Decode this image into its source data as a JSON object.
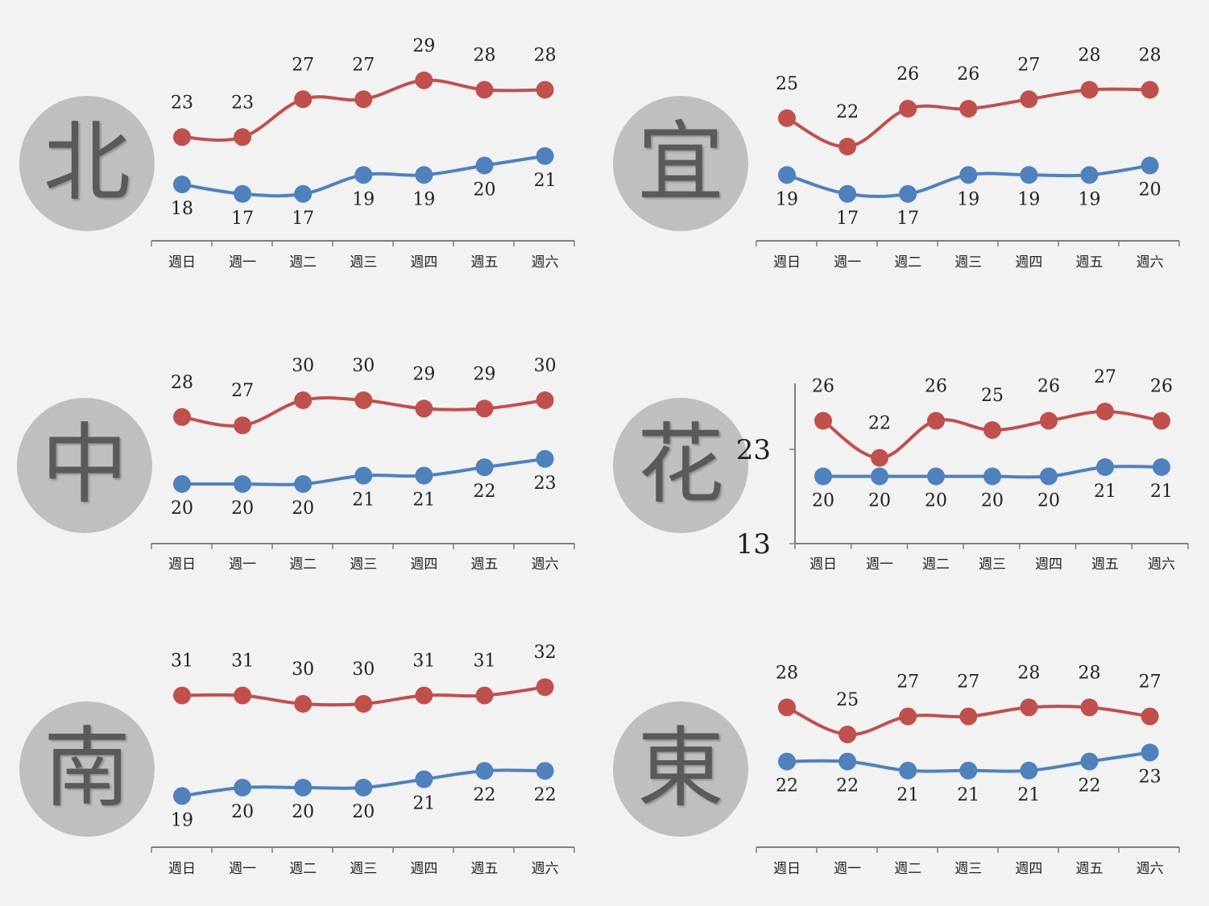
{
  "colors": {
    "high": "#c0504d",
    "low": "#4f81bd",
    "badge": "#bfbfbf",
    "axis": "#7f7f7f"
  },
  "chart_data": [
    {
      "type": "line",
      "region": "北",
      "categories": [
        "週日",
        "週一",
        "週二",
        "週三",
        "週四",
        "週五",
        "週六"
      ],
      "series": [
        {
          "values": [
            23,
            23,
            27,
            27,
            29,
            28,
            28
          ],
          "color": "#c0504d"
        },
        {
          "values": [
            18,
            17,
            17,
            19,
            19,
            20,
            21
          ],
          "color": "#4f81bd"
        }
      ]
    },
    {
      "type": "line",
      "region": "宜",
      "categories": [
        "週日",
        "週一",
        "週二",
        "週三",
        "週四",
        "週五",
        "週六"
      ],
      "series": [
        {
          "values": [
            25,
            22,
            26,
            26,
            27,
            28,
            28
          ],
          "color": "#c0504d"
        },
        {
          "values": [
            19,
            17,
            17,
            19,
            19,
            19,
            20
          ],
          "color": "#4f81bd"
        }
      ]
    },
    {
      "type": "line",
      "region": "中",
      "categories": [
        "週日",
        "週一",
        "週二",
        "週三",
        "週四",
        "週五",
        "週六"
      ],
      "series": [
        {
          "values": [
            28,
            27,
            30,
            30,
            29,
            29,
            30
          ],
          "color": "#c0504d"
        },
        {
          "values": [
            20,
            20,
            20,
            21,
            21,
            22,
            23
          ],
          "color": "#4f81bd"
        }
      ]
    },
    {
      "type": "line",
      "region": "花",
      "categories": [
        "週日",
        "週一",
        "週二",
        "週三",
        "週四",
        "週五",
        "週六"
      ],
      "yticks": [
        "23",
        "13"
      ],
      "series": [
        {
          "values": [
            26,
            22,
            26,
            25,
            26,
            27,
            26
          ],
          "color": "#c0504d"
        },
        {
          "values": [
            20,
            20,
            20,
            20,
            20,
            21,
            21
          ],
          "color": "#4f81bd"
        }
      ]
    },
    {
      "type": "line",
      "region": "南",
      "categories": [
        "週日",
        "週一",
        "週二",
        "週三",
        "週四",
        "週五",
        "週六"
      ],
      "series": [
        {
          "values": [
            31,
            31,
            30,
            30,
            31,
            31,
            32
          ],
          "color": "#c0504d"
        },
        {
          "values": [
            19,
            20,
            20,
            20,
            21,
            22,
            22
          ],
          "color": "#4f81bd"
        }
      ]
    },
    {
      "type": "line",
      "region": "東",
      "categories": [
        "週日",
        "週一",
        "週二",
        "週三",
        "週四",
        "週五",
        "週六"
      ],
      "series": [
        {
          "values": [
            28,
            25,
            27,
            27,
            28,
            28,
            27
          ],
          "color": "#c0504d"
        },
        {
          "values": [
            22,
            22,
            21,
            21,
            21,
            22,
            23
          ],
          "color": "#4f81bd"
        }
      ]
    }
  ]
}
